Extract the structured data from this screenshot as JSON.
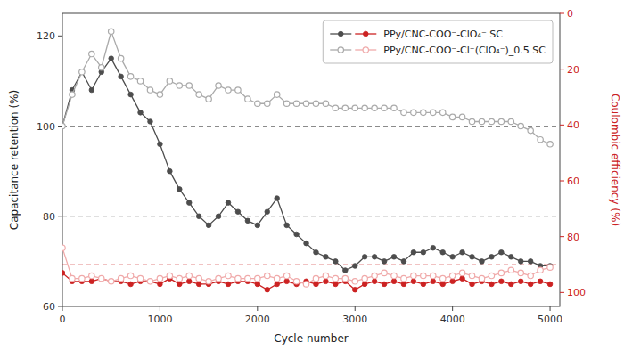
{
  "chart_data": {
    "type": "line",
    "xlabel": "Cycle number",
    "ylabel": "Capacitance retention (%)",
    "y2label": "Coulombic efficiency (%)",
    "xlim": [
      0,
      5100
    ],
    "xticks": [
      0,
      1000,
      2000,
      3000,
      4000,
      5000
    ],
    "ylim": [
      60,
      125
    ],
    "yticks": [
      60,
      80,
      100,
      120
    ],
    "y2lim": [
      105,
      0
    ],
    "y2ticks": [
      0,
      20,
      40,
      60,
      80,
      100
    ],
    "hlines": [
      100,
      80
    ],
    "y2hlines": [
      90
    ],
    "grid": false,
    "legend": "upper right",
    "x": [
      0,
      100,
      200,
      300,
      400,
      500,
      600,
      700,
      800,
      900,
      1000,
      1100,
      1200,
      1300,
      1400,
      1500,
      1600,
      1700,
      1800,
      1900,
      2000,
      2100,
      2200,
      2300,
      2400,
      2500,
      2600,
      2700,
      2800,
      2900,
      3000,
      3100,
      3200,
      3300,
      3400,
      3500,
      3600,
      3700,
      3800,
      3900,
      4000,
      4100,
      4200,
      4300,
      4400,
      4500,
      4600,
      4700,
      4800,
      4900,
      5000
    ],
    "series": [
      {
        "name": "PPy/CNC-COO⁻-ClO₄⁻ SC",
        "color": "#4d4d4d",
        "marker": "circle",
        "axis": "y",
        "values": [
          100,
          108,
          112,
          108,
          112,
          115,
          111,
          107,
          103,
          101,
          96,
          90,
          86,
          83,
          80,
          78,
          80,
          83,
          81,
          79,
          78,
          81,
          84,
          78,
          76,
          74,
          72,
          71,
          70,
          68,
          69,
          71,
          71,
          70,
          71,
          70,
          72,
          72,
          73,
          72,
          71,
          72,
          71,
          70,
          71,
          72,
          71,
          70,
          70,
          69,
          69
        ]
      },
      {
        "name": "PPy/CNC-COO⁻-Cl⁻(ClO₄⁻)_0.5 SC",
        "color": "#aaaaaa",
        "marker": "circle-open",
        "axis": "y",
        "values": [
          100,
          107,
          112,
          116,
          113,
          121,
          115,
          111,
          110,
          108,
          107,
          110,
          109,
          109,
          107,
          106,
          109,
          108,
          108,
          106,
          105,
          105,
          107,
          105,
          105,
          105,
          105,
          105,
          104,
          104,
          104,
          104,
          104,
          104,
          104,
          103,
          103,
          103,
          103,
          103,
          102,
          102,
          101,
          101,
          101,
          101,
          101,
          100,
          99,
          97,
          96
        ]
      },
      {
        "color": "#cc2222",
        "marker": "circle",
        "axis": "y2",
        "values": [
          93,
          96,
          96,
          96,
          95,
          96,
          96,
          97,
          96,
          96,
          97,
          95,
          97,
          96,
          97,
          97,
          96,
          97,
          96,
          96,
          97,
          99,
          97,
          96,
          97,
          96,
          97,
          96,
          97,
          96,
          99,
          97,
          96,
          97,
          96,
          97,
          96,
          97,
          96,
          97,
          96,
          95,
          97,
          96,
          97,
          96,
          97,
          96,
          97,
          96,
          97
        ]
      },
      {
        "color": "#f0aaaa",
        "marker": "circle-open",
        "axis": "y2",
        "values": [
          84,
          95,
          95,
          94,
          95,
          96,
          95,
          94,
          95,
          96,
          95,
          94,
          95,
          94,
          95,
          96,
          95,
          94,
          95,
          95,
          95,
          94,
          95,
          94,
          96,
          97,
          95,
          94,
          95,
          95,
          96,
          95,
          94,
          93,
          94,
          95,
          94,
          94,
          94,
          95,
          94,
          93,
          94,
          95,
          94,
          93,
          92,
          93,
          94,
          92,
          91
        ]
      }
    ]
  }
}
